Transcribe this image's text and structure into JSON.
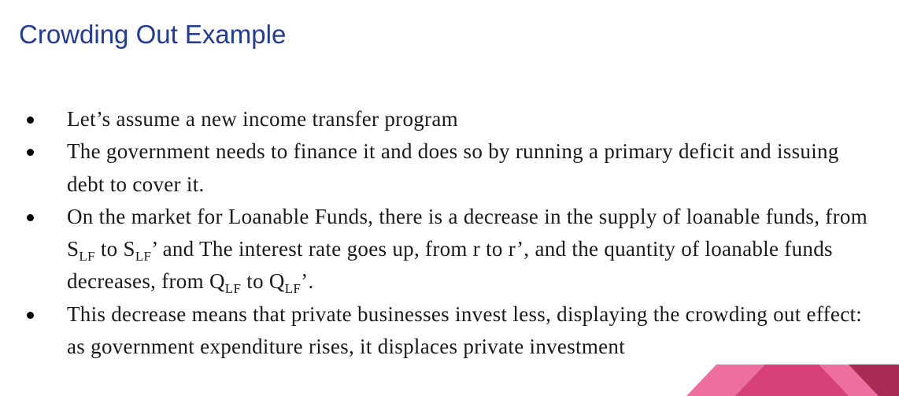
{
  "title": "Crowding Out Example",
  "bullets": {
    "b1": "Let’s assume a new income transfer program",
    "b2": "The government needs to finance it and does so by running a primary deficit and issuing debt to cover it.",
    "b3": {
      "t1": "On the market for Loanable Funds, there is a decrease in the supply of loanable funds, from S",
      "s1": "LF",
      "t2": " to S",
      "s2": "LF",
      "t3": "’ and The interest rate goes up, from r to r’, and the quantity of loanable funds decreases, from Q",
      "s3": "LF",
      "t4": " to Q",
      "s4": "LF",
      "t5": "’."
    },
    "b4": "This decrease means that private businesses invest less, displaying the crowding out effect: as government expenditure rises, it displaces private investment"
  },
  "colors": {
    "title": "#233c8f",
    "accent_light": "#ec6fa0",
    "accent_mid": "#d63f77",
    "accent_dark": "#a92a55"
  }
}
